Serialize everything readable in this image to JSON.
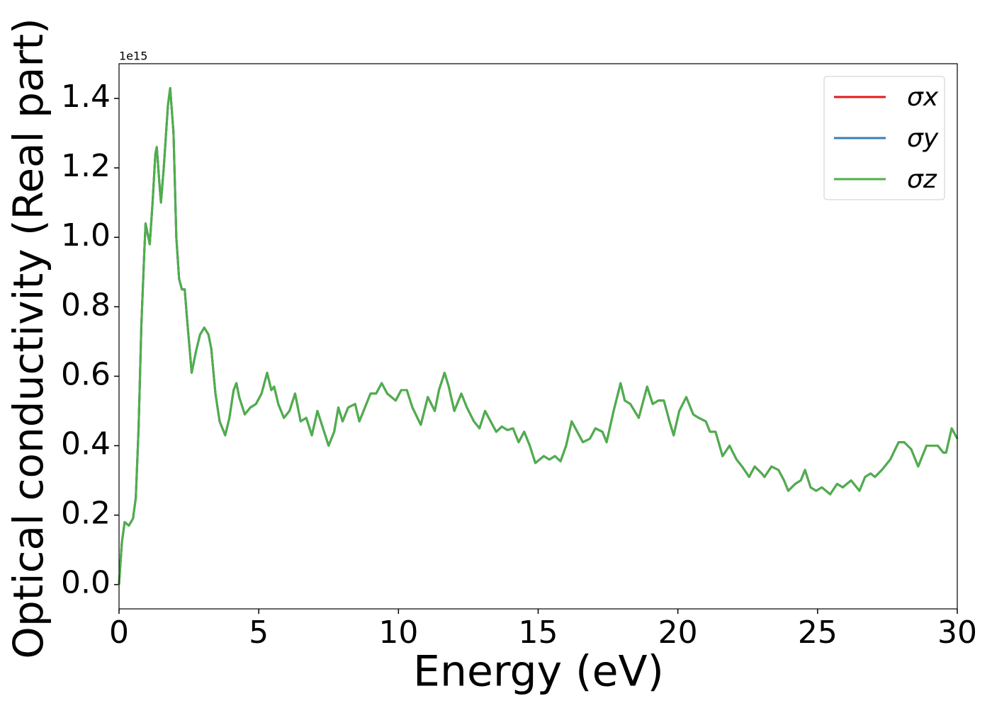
{
  "chart_data": {
    "type": "line",
    "x_label": "Energy (eV)",
    "y_label": "Optical conductivity (Real part)",
    "offset_label": "1e15",
    "xlim": [
      0,
      30
    ],
    "ylim": [
      -0.07,
      1.5
    ],
    "xticks": [
      0,
      5,
      10,
      15,
      20,
      25,
      30
    ],
    "yticks": [
      {
        "value": 0,
        "label": "0.0"
      },
      0.2,
      0.4,
      0.6,
      0.8,
      {
        "value": 1,
        "label": "1.0"
      },
      1.2,
      1.4
    ],
    "legend": "upper right",
    "x": [
      0,
      0.1,
      0.2,
      0.35,
      0.5,
      0.6,
      0.7,
      0.8,
      0.9,
      0.95,
      1.05,
      1.1,
      1.2,
      1.3,
      1.35,
      1.45,
      1.5,
      1.6,
      1.75,
      1.83,
      1.95,
      2.05,
      2.15,
      2.25,
      2.35,
      2.45,
      2.6,
      2.75,
      2.9,
      3.05,
      3.2,
      3.3,
      3.45,
      3.6,
      3.8,
      3.95,
      4.1,
      4.2,
      4.3,
      4.5,
      4.7,
      4.9,
      5.1,
      5.3,
      5.45,
      5.55,
      5.7,
      5.9,
      6.1,
      6.3,
      6.5,
      6.7,
      6.9,
      7.1,
      7.3,
      7.5,
      7.7,
      7.85,
      8.0,
      8.2,
      8.45,
      8.6,
      8.8,
      9.0,
      9.2,
      9.4,
      9.6,
      9.9,
      10.1,
      10.3,
      10.5,
      10.8,
      11.05,
      11.3,
      11.45,
      11.65,
      11.8,
      12.0,
      12.25,
      12.45,
      12.7,
      12.9,
      13.1,
      13.3,
      13.5,
      13.7,
      13.9,
      14.1,
      14.3,
      14.5,
      14.7,
      14.9,
      15.2,
      15.4,
      15.6,
      15.8,
      16.0,
      16.2,
      16.4,
      16.6,
      16.85,
      17.05,
      17.3,
      17.45,
      17.7,
      17.95,
      18.1,
      18.3,
      18.6,
      18.9,
      19.1,
      19.3,
      19.5,
      19.7,
      19.85,
      20.05,
      20.3,
      20.55,
      20.75,
      21.0,
      21.15,
      21.35,
      21.6,
      21.85,
      22.1,
      22.3,
      22.55,
      22.75,
      23.0,
      23.1,
      23.35,
      23.6,
      23.8,
      23.95,
      24.2,
      24.4,
      24.55,
      24.75,
      24.95,
      25.15,
      25.45,
      25.7,
      25.9,
      26.2,
      26.5,
      26.7,
      26.9,
      27.05,
      27.3,
      27.6,
      27.9,
      28.1,
      28.35,
      28.6,
      28.9,
      29.1,
      29.3,
      29.5,
      29.6,
      29.8,
      30
    ],
    "series": [
      {
        "name": "σx",
        "color": "#e41a1c",
        "values": [
          0,
          0.12,
          0.18,
          0.17,
          0.19,
          0.25,
          0.45,
          0.75,
          0.95,
          1.04,
          1.0,
          0.98,
          1.1,
          1.24,
          1.26,
          1.15,
          1.1,
          1.2,
          1.38,
          1.43,
          1.3,
          1.0,
          0.88,
          0.85,
          0.85,
          0.75,
          0.61,
          0.67,
          0.72,
          0.74,
          0.72,
          0.68,
          0.55,
          0.47,
          0.43,
          0.48,
          0.56,
          0.58,
          0.54,
          0.49,
          0.51,
          0.52,
          0.55,
          0.61,
          0.56,
          0.57,
          0.52,
          0.48,
          0.5,
          0.55,
          0.47,
          0.48,
          0.43,
          0.5,
          0.45,
          0.4,
          0.44,
          0.51,
          0.47,
          0.51,
          0.52,
          0.47,
          0.51,
          0.55,
          0.55,
          0.58,
          0.55,
          0.53,
          0.56,
          0.56,
          0.51,
          0.46,
          0.54,
          0.5,
          0.56,
          0.61,
          0.57,
          0.5,
          0.55,
          0.51,
          0.47,
          0.45,
          0.5,
          0.47,
          0.44,
          0.455,
          0.445,
          0.45,
          0.41,
          0.44,
          0.4,
          0.35,
          0.37,
          0.36,
          0.37,
          0.355,
          0.4,
          0.47,
          0.44,
          0.41,
          0.42,
          0.45,
          0.44,
          0.41,
          0.5,
          0.58,
          0.53,
          0.52,
          0.48,
          0.57,
          0.52,
          0.53,
          0.53,
          0.47,
          0.43,
          0.5,
          0.54,
          0.49,
          0.48,
          0.47,
          0.44,
          0.44,
          0.37,
          0.4,
          0.36,
          0.34,
          0.31,
          0.34,
          0.32,
          0.31,
          0.34,
          0.33,
          0.3,
          0.27,
          0.29,
          0.3,
          0.33,
          0.28,
          0.27,
          0.28,
          0.26,
          0.29,
          0.28,
          0.3,
          0.27,
          0.31,
          0.32,
          0.31,
          0.33,
          0.36,
          0.41,
          0.41,
          0.39,
          0.34,
          0.4,
          0.4,
          0.4,
          0.38,
          0.38,
          0.45,
          0.42
        ]
      },
      {
        "name": "σy",
        "color": "#377eb8",
        "values": [
          0,
          0.12,
          0.18,
          0.17,
          0.19,
          0.25,
          0.45,
          0.75,
          0.95,
          1.04,
          1.0,
          0.98,
          1.1,
          1.24,
          1.26,
          1.15,
          1.1,
          1.2,
          1.38,
          1.43,
          1.3,
          1.0,
          0.88,
          0.85,
          0.85,
          0.75,
          0.61,
          0.67,
          0.72,
          0.74,
          0.72,
          0.68,
          0.55,
          0.47,
          0.43,
          0.48,
          0.56,
          0.58,
          0.54,
          0.49,
          0.51,
          0.52,
          0.55,
          0.61,
          0.56,
          0.57,
          0.52,
          0.48,
          0.5,
          0.55,
          0.47,
          0.48,
          0.43,
          0.5,
          0.45,
          0.4,
          0.44,
          0.51,
          0.47,
          0.51,
          0.52,
          0.47,
          0.51,
          0.55,
          0.55,
          0.58,
          0.55,
          0.53,
          0.56,
          0.56,
          0.51,
          0.46,
          0.54,
          0.5,
          0.56,
          0.61,
          0.57,
          0.5,
          0.55,
          0.51,
          0.47,
          0.45,
          0.5,
          0.47,
          0.44,
          0.455,
          0.445,
          0.45,
          0.41,
          0.44,
          0.4,
          0.35,
          0.37,
          0.36,
          0.37,
          0.355,
          0.4,
          0.47,
          0.44,
          0.41,
          0.42,
          0.45,
          0.44,
          0.41,
          0.5,
          0.58,
          0.53,
          0.52,
          0.48,
          0.57,
          0.52,
          0.53,
          0.53,
          0.47,
          0.43,
          0.5,
          0.54,
          0.49,
          0.48,
          0.47,
          0.44,
          0.44,
          0.37,
          0.4,
          0.36,
          0.34,
          0.31,
          0.34,
          0.32,
          0.31,
          0.34,
          0.33,
          0.3,
          0.27,
          0.29,
          0.3,
          0.33,
          0.28,
          0.27,
          0.28,
          0.26,
          0.29,
          0.28,
          0.3,
          0.27,
          0.31,
          0.32,
          0.31,
          0.33,
          0.36,
          0.41,
          0.41,
          0.39,
          0.34,
          0.4,
          0.4,
          0.4,
          0.38,
          0.38,
          0.45,
          0.42
        ]
      },
      {
        "name": "σz",
        "color": "#4daf4a",
        "values": [
          0,
          0.12,
          0.18,
          0.17,
          0.19,
          0.25,
          0.45,
          0.75,
          0.95,
          1.04,
          1.0,
          0.98,
          1.1,
          1.24,
          1.26,
          1.15,
          1.1,
          1.2,
          1.38,
          1.43,
          1.3,
          1.0,
          0.88,
          0.85,
          0.85,
          0.75,
          0.61,
          0.67,
          0.72,
          0.74,
          0.72,
          0.68,
          0.55,
          0.47,
          0.43,
          0.48,
          0.56,
          0.58,
          0.54,
          0.49,
          0.51,
          0.52,
          0.55,
          0.61,
          0.56,
          0.57,
          0.52,
          0.48,
          0.5,
          0.55,
          0.47,
          0.48,
          0.43,
          0.5,
          0.45,
          0.4,
          0.44,
          0.51,
          0.47,
          0.51,
          0.52,
          0.47,
          0.51,
          0.55,
          0.55,
          0.58,
          0.55,
          0.53,
          0.56,
          0.56,
          0.51,
          0.46,
          0.54,
          0.5,
          0.56,
          0.61,
          0.57,
          0.5,
          0.55,
          0.51,
          0.47,
          0.45,
          0.5,
          0.47,
          0.44,
          0.455,
          0.445,
          0.45,
          0.41,
          0.44,
          0.4,
          0.35,
          0.37,
          0.36,
          0.37,
          0.355,
          0.4,
          0.47,
          0.44,
          0.41,
          0.42,
          0.45,
          0.44,
          0.41,
          0.5,
          0.58,
          0.53,
          0.52,
          0.48,
          0.57,
          0.52,
          0.53,
          0.53,
          0.47,
          0.43,
          0.5,
          0.54,
          0.49,
          0.48,
          0.47,
          0.44,
          0.44,
          0.37,
          0.4,
          0.36,
          0.34,
          0.31,
          0.34,
          0.32,
          0.31,
          0.34,
          0.33,
          0.3,
          0.27,
          0.29,
          0.3,
          0.33,
          0.28,
          0.27,
          0.28,
          0.26,
          0.29,
          0.28,
          0.3,
          0.27,
          0.31,
          0.32,
          0.31,
          0.33,
          0.36,
          0.41,
          0.41,
          0.39,
          0.34,
          0.4,
          0.4,
          0.4,
          0.38,
          0.38,
          0.45,
          0.42
        ]
      }
    ]
  }
}
